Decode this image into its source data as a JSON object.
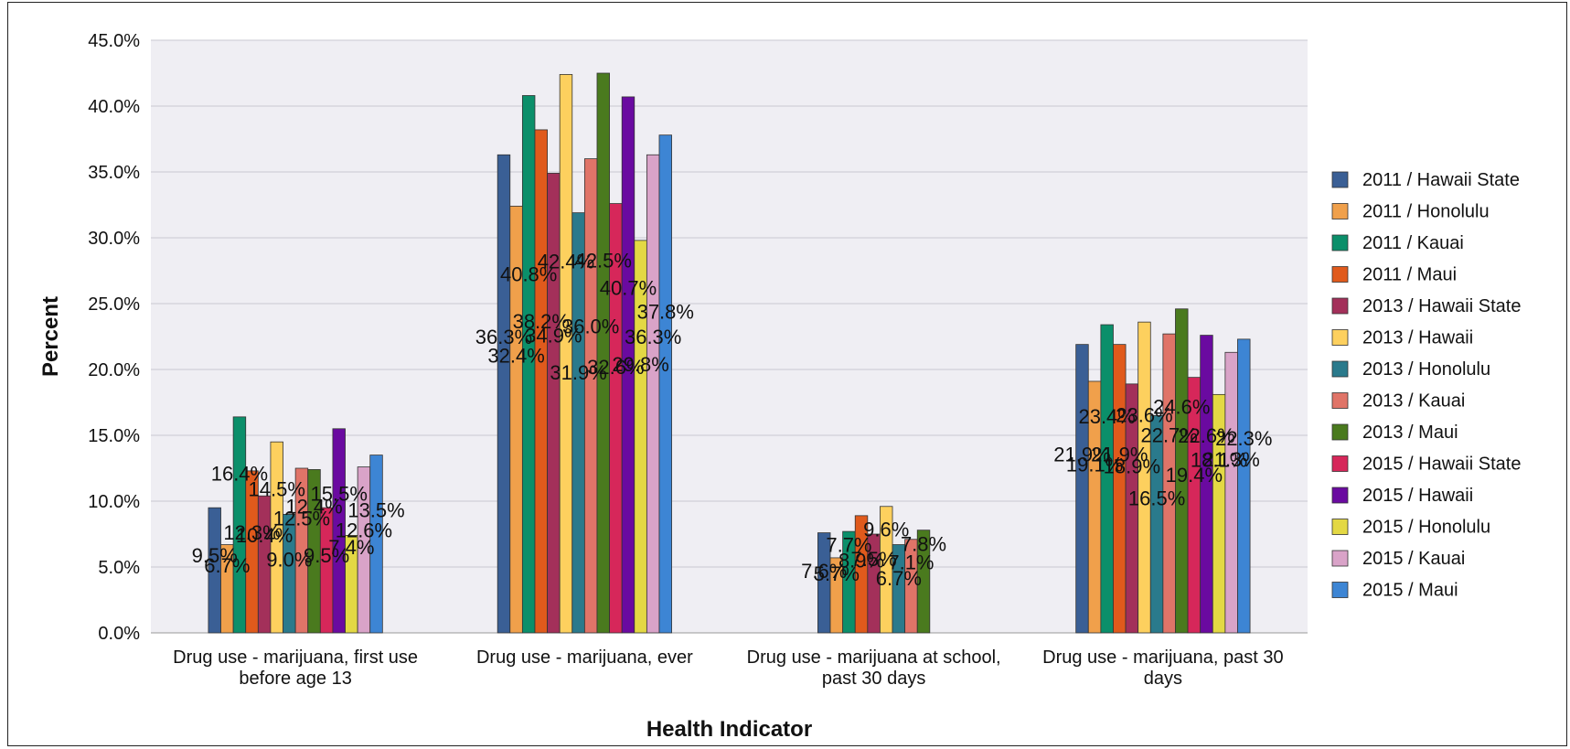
{
  "chart_data": {
    "type": "bar",
    "xlabel": "Health Indicator",
    "ylabel": "Percent",
    "ylim": [
      0,
      45
    ],
    "ytick_step": 5,
    "ytick_labels": [
      "0.0%",
      "5.0%",
      "10.0%",
      "15.0%",
      "20.0%",
      "25.0%",
      "30.0%",
      "35.0%",
      "40.0%",
      "45.0%"
    ],
    "grid": true,
    "legend_position": "right",
    "categories": [
      [
        "Drug use - marijuana, first use",
        "before age 13"
      ],
      [
        "Drug use - marijuana, ever"
      ],
      [
        "Drug use - marijuana at school,",
        "past 30 days"
      ],
      [
        "Drug use - marijuana, past 30",
        "days"
      ]
    ],
    "series": [
      {
        "name": "2011 / Hawaii State",
        "color": "#3a5f95",
        "values": [
          9.5,
          36.3,
          7.6,
          21.9
        ]
      },
      {
        "name": "2011 / Honolulu",
        "color": "#f0a04b",
        "values": [
          6.7,
          32.4,
          5.7,
          19.1
        ]
      },
      {
        "name": "2011 / Kauai",
        "color": "#0b8f6a",
        "values": [
          16.4,
          40.8,
          7.7,
          23.4
        ]
      },
      {
        "name": "2011 / Maui",
        "color": "#e05a1c",
        "values": [
          12.3,
          38.2,
          8.9,
          21.9
        ]
      },
      {
        "name": "2013 / Hawaii State",
        "color": "#a3305a",
        "values": [
          10.4,
          34.9,
          7.5,
          18.9
        ]
      },
      {
        "name": "2013 / Hawaii",
        "color": "#fdd05e",
        "values": [
          14.5,
          42.4,
          9.6,
          23.6
        ]
      },
      {
        "name": "2013 / Honolulu",
        "color": "#2a7a8c",
        "values": [
          9.0,
          31.9,
          6.7,
          16.5
        ]
      },
      {
        "name": "2013 / Kauai",
        "color": "#e07468",
        "values": [
          12.5,
          36.0,
          7.1,
          22.7
        ]
      },
      {
        "name": "2013 / Maui",
        "color": "#4a7a1e",
        "values": [
          12.4,
          42.5,
          7.8,
          24.6
        ]
      },
      {
        "name": "2015 / Hawaii State",
        "color": "#d6275a",
        "values": [
          9.5,
          32.6,
          null,
          19.4
        ]
      },
      {
        "name": "2015 / Hawaii",
        "color": "#6a0aa0",
        "values": [
          15.5,
          40.7,
          null,
          22.6
        ]
      },
      {
        "name": "2015 / Honolulu",
        "color": "#e3d844",
        "values": [
          7.4,
          29.8,
          null,
          18.1
        ]
      },
      {
        "name": "2015 / Kauai",
        "color": "#d9a3c8",
        "values": [
          12.6,
          36.3,
          null,
          21.3
        ]
      },
      {
        "name": "2015 / Maui",
        "color": "#3d85d4",
        "values": [
          13.5,
          37.8,
          null,
          22.3
        ]
      }
    ]
  }
}
